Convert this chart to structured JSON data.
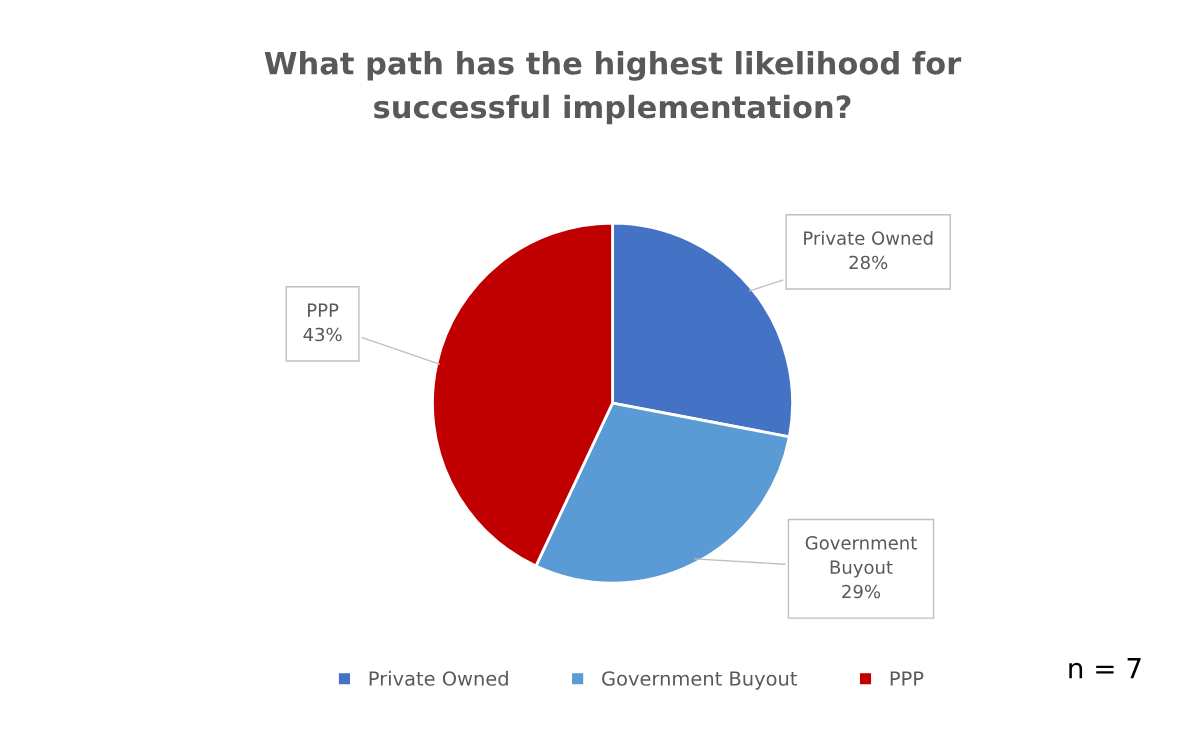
{
  "chart_data": {
    "type": "pie",
    "title": "What path has the highest likelihood for\nsuccessful implementation?",
    "categories": [
      "Private Owned",
      "Government Buyout",
      "PPP"
    ],
    "values": [
      28,
      29,
      43
    ],
    "colors": [
      "#4472c4",
      "#5b9bd5",
      "#c00000"
    ],
    "value_labels": [
      "Private Owned\n28%",
      "Government\nBuyout\n29%",
      "PPP\n43%"
    ],
    "legend": "bottom",
    "annotations": [
      "n = 7"
    ]
  }
}
